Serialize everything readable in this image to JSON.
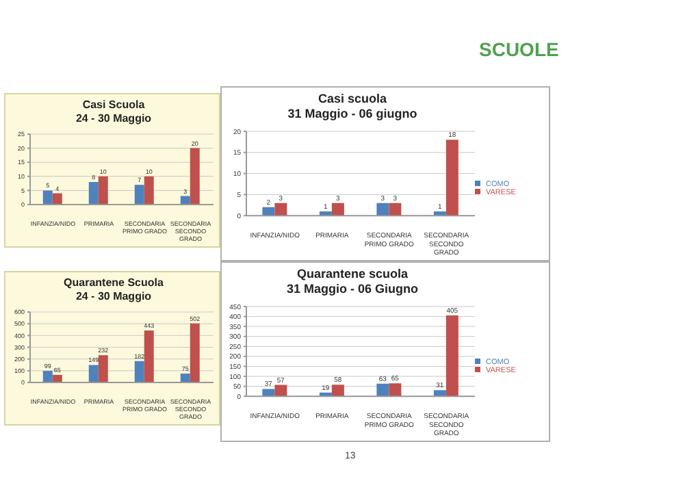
{
  "chart_data": [
    {
      "type": "bar",
      "title": "Casi Scuola",
      "subtitle": "24 - 30 Maggio",
      "categories": [
        "INFANZIA/NIDO",
        "PRIMARIA",
        "SECONDARIA PRIMO GRADO",
        "SECONDARIA SECONDO GRADO"
      ],
      "series": [
        {
          "color": "#4f81bd",
          "values": [
            5,
            8,
            7,
            3
          ]
        },
        {
          "color": "#c0504d",
          "values": [
            4,
            10,
            10,
            20
          ]
        }
      ],
      "ylim": [
        0,
        25
      ],
      "yticks": [
        0,
        5,
        10,
        15,
        20,
        25
      ],
      "grid": "y",
      "data_labels": true,
      "annotations": [
        "SCUOLE"
      ]
    },
    {
      "type": "bar",
      "title": "Casi scuola",
      "subtitle": "31 Maggio - 06 giugno",
      "categories": [
        "INFANZIA/NIDO",
        "PRIMARIA",
        "SECONDARIA PRIMO GRADO",
        "SECONDARIA SECONDO GRADO"
      ],
      "series": [
        {
          "name": "COMO",
          "color": "#4f81bd",
          "values": [
            2,
            1,
            3,
            1
          ]
        },
        {
          "name": "VARESE",
          "color": "#c0504d",
          "values": [
            3,
            3,
            3,
            18
          ]
        }
      ],
      "ylim": [
        0,
        20
      ],
      "yticks": [
        0,
        5,
        10,
        15,
        20
      ],
      "grid": "y",
      "data_labels": true,
      "legend": "right"
    },
    {
      "type": "bar",
      "title": "Quarantene Scuola",
      "subtitle": "24 - 30 Maggio",
      "categories": [
        "INFANZIA/NIDO",
        "PRIMARIA",
        "SECONDARIA PRIMO GRADO",
        "SECONDARIA SECONDO GRADO"
      ],
      "series": [
        {
          "color": "#4f81bd",
          "values": [
            99,
            149,
            182,
            75
          ]
        },
        {
          "color": "#c0504d",
          "values": [
            65,
            232,
            443,
            502
          ]
        }
      ],
      "ylim": [
        0,
        600
      ],
      "yticks": [
        0,
        100,
        200,
        300,
        400,
        500,
        600
      ],
      "grid": "y",
      "data_labels": true
    },
    {
      "type": "bar",
      "title": "Quarantene scuola",
      "subtitle": "31 Maggio - 06 Giugno",
      "categories": [
        "INFANZIA/NIDO",
        "PRIMARIA",
        "SECONDARIA PRIMO GRADO",
        "SECONDARIA SECONDO GRADO"
      ],
      "series": [
        {
          "name": "COMO",
          "color": "#4f81bd",
          "values": [
            37,
            19,
            63,
            31
          ]
        },
        {
          "name": "VARESE",
          "color": "#c0504d",
          "values": [
            57,
            58,
            65,
            405
          ]
        }
      ],
      "ylim": [
        0,
        450
      ],
      "yticks": [
        0,
        50,
        100,
        150,
        200,
        250,
        300,
        350,
        400,
        450
      ],
      "grid": "y",
      "data_labels": true,
      "legend": "right",
      "annotations": [
        "13"
      ]
    }
  ]
}
